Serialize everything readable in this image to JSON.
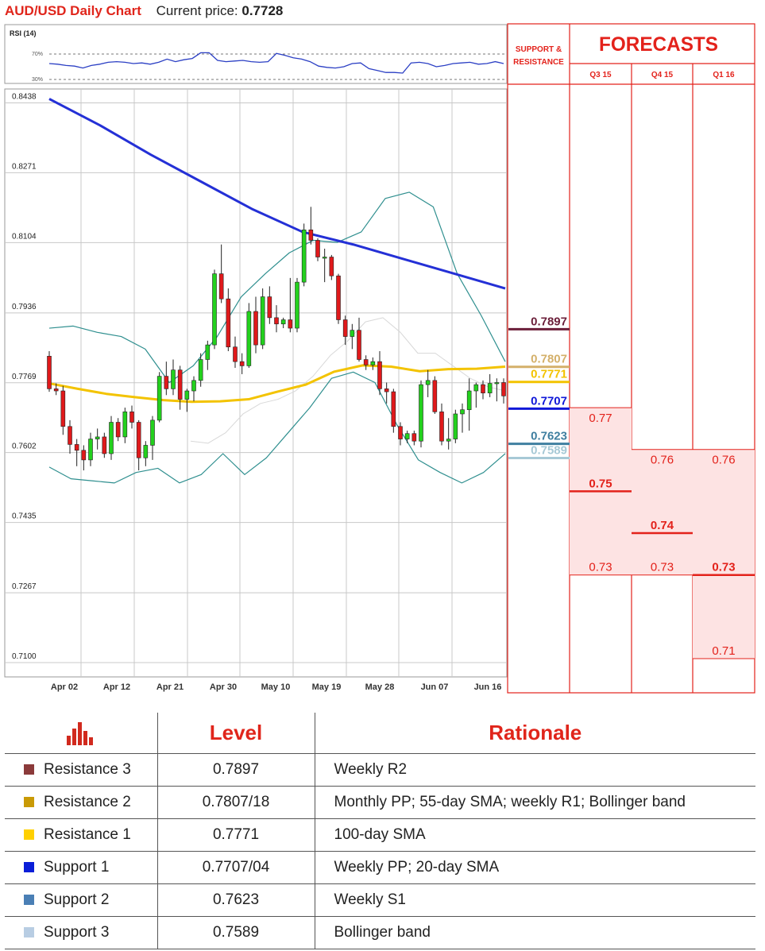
{
  "header": {
    "title": "AUD/USD Daily Chart",
    "price_label": "Current price:",
    "price_value": "0.7728"
  },
  "rsi": {
    "label": "RSI (14)",
    "upper": "70%",
    "lower": "30%",
    "values": [
      55,
      54,
      52,
      51,
      48,
      52,
      54,
      57,
      58,
      57,
      55,
      56,
      54,
      57,
      62,
      58,
      61,
      63,
      72,
      72,
      60,
      58,
      59,
      60,
      58,
      57,
      58,
      71,
      68,
      64,
      62,
      58,
      51,
      49,
      48,
      50,
      55,
      56,
      47,
      44,
      41,
      41,
      40,
      56,
      57,
      55,
      50,
      52,
      55,
      56,
      57,
      54,
      55,
      58,
      55
    ]
  },
  "chart_data": {
    "type": "candlestick",
    "title": "AUD/USD Daily Chart",
    "y_ticks": [
      "0.8438",
      "0.8271",
      "0.8104",
      "0.7936",
      "0.7769",
      "0.7602",
      "0.7435",
      "0.7267",
      "0.7100"
    ],
    "ylim": [
      0.71,
      0.8438
    ],
    "x_ticks": [
      "Apr 02",
      "Apr 12",
      "Apr 21",
      "Apr 30",
      "May 10",
      "May 19",
      "May 28",
      "Jun 07",
      "Jun 16"
    ],
    "candles": [
      [
        0.7823,
        0.7835,
        0.7738,
        0.7745
      ],
      [
        0.7745,
        0.7758,
        0.773,
        0.774
      ],
      [
        0.774,
        0.7752,
        0.7635,
        0.7655
      ],
      [
        0.7655,
        0.767,
        0.759,
        0.7612
      ],
      [
        0.7612,
        0.7625,
        0.756,
        0.7598
      ],
      [
        0.7598,
        0.761,
        0.755,
        0.7575
      ],
      [
        0.7575,
        0.764,
        0.756,
        0.7625
      ],
      [
        0.7625,
        0.765,
        0.76,
        0.763
      ],
      [
        0.763,
        0.764,
        0.758,
        0.759
      ],
      [
        0.759,
        0.768,
        0.7575,
        0.7665
      ],
      [
        0.7665,
        0.7675,
        0.762,
        0.763
      ],
      [
        0.763,
        0.77,
        0.7615,
        0.769
      ],
      [
        0.769,
        0.7705,
        0.765,
        0.7665
      ],
      [
        0.7665,
        0.767,
        0.755,
        0.758
      ],
      [
        0.758,
        0.762,
        0.756,
        0.761
      ],
      [
        0.761,
        0.768,
        0.7575,
        0.767
      ],
      [
        0.767,
        0.7785,
        0.7665,
        0.7775
      ],
      [
        0.7775,
        0.781,
        0.773,
        0.7745
      ],
      [
        0.7745,
        0.7815,
        0.773,
        0.779
      ],
      [
        0.779,
        0.78,
        0.7695,
        0.772
      ],
      [
        0.772,
        0.7745,
        0.769,
        0.774
      ],
      [
        0.774,
        0.7775,
        0.7715,
        0.7765
      ],
      [
        0.7765,
        0.783,
        0.775,
        0.7815
      ],
      [
        0.7815,
        0.786,
        0.779,
        0.785
      ],
      [
        0.785,
        0.803,
        0.784,
        0.802
      ],
      [
        0.802,
        0.809,
        0.795,
        0.796
      ],
      [
        0.796,
        0.7985,
        0.7835,
        0.7845
      ],
      [
        0.7845,
        0.787,
        0.7795,
        0.781
      ],
      [
        0.781,
        0.783,
        0.778,
        0.78
      ],
      [
        0.78,
        0.795,
        0.7795,
        0.793
      ],
      [
        0.793,
        0.7965,
        0.783,
        0.785
      ],
      [
        0.785,
        0.7985,
        0.784,
        0.7965
      ],
      [
        0.7965,
        0.799,
        0.79,
        0.7915
      ],
      [
        0.7915,
        0.7945,
        0.788,
        0.79
      ],
      [
        0.79,
        0.7915,
        0.789,
        0.791
      ],
      [
        0.791,
        0.801,
        0.788,
        0.789
      ],
      [
        0.789,
        0.801,
        0.788,
        0.8
      ],
      [
        0.8,
        0.814,
        0.799,
        0.8125
      ],
      [
        0.8125,
        0.818,
        0.809,
        0.81
      ],
      [
        0.81,
        0.8105,
        0.805,
        0.806
      ],
      [
        0.806,
        0.808,
        0.8,
        0.806
      ],
      [
        0.806,
        0.8065,
        0.8005,
        0.8015
      ],
      [
        0.8015,
        0.802,
        0.79,
        0.791
      ],
      [
        0.791,
        0.792,
        0.785,
        0.787
      ],
      [
        0.787,
        0.79,
        0.784,
        0.7885
      ],
      [
        0.7885,
        0.7915,
        0.781,
        0.7815
      ],
      [
        0.7815,
        0.7825,
        0.779,
        0.7802
      ],
      [
        0.7802,
        0.782,
        0.779,
        0.781
      ],
      [
        0.781,
        0.7835,
        0.773,
        0.7745
      ],
      [
        0.7745,
        0.776,
        0.771,
        0.7738
      ],
      [
        0.7738,
        0.7745,
        0.764,
        0.7655
      ],
      [
        0.7655,
        0.7665,
        0.761,
        0.7625
      ],
      [
        0.7625,
        0.7645,
        0.7615,
        0.7638
      ],
      [
        0.7638,
        0.7645,
        0.761,
        0.762
      ],
      [
        0.762,
        0.7765,
        0.7605,
        0.7755
      ],
      [
        0.7755,
        0.779,
        0.7725,
        0.7765
      ],
      [
        0.7765,
        0.7775,
        0.7685,
        0.769
      ],
      [
        0.769,
        0.771,
        0.761,
        0.762
      ],
      [
        0.762,
        0.7675,
        0.76,
        0.7625
      ],
      [
        0.7625,
        0.7695,
        0.7615,
        0.7685
      ],
      [
        0.7685,
        0.771,
        0.764,
        0.7695
      ],
      [
        0.7695,
        0.777,
        0.7645,
        0.774
      ],
      [
        0.774,
        0.776,
        0.77,
        0.7755
      ],
      [
        0.7755,
        0.7765,
        0.772,
        0.7735
      ],
      [
        0.7735,
        0.778,
        0.7725,
        0.7758
      ],
      [
        0.7758,
        0.777,
        0.7715,
        0.776
      ],
      [
        0.776,
        0.777,
        0.771,
        0.7728
      ]
    ],
    "series": [
      {
        "values": [
          0.8438,
          0.8375,
          0.8305,
          0.824,
          0.8175,
          0.812,
          0.809,
          0.8055,
          0.802,
          0.7985
        ]
      },
      {
        "values": [
          0.7758,
          0.7745,
          0.7733,
          0.7725,
          0.7718,
          0.7714,
          0.7715,
          0.772,
          0.7738,
          0.7755,
          0.7786,
          0.7801,
          0.7798,
          0.7787,
          0.7792,
          0.7793,
          0.7798
        ]
      },
      {
        "values": [
          0.789,
          0.7895,
          0.788,
          0.787,
          0.784,
          0.776,
          0.78,
          0.787,
          0.7965,
          0.802,
          0.807,
          0.81,
          0.8095,
          0.812,
          0.82,
          0.8215,
          0.818,
          0.802,
          0.792,
          0.781
        ]
      },
      {
        "values": [
          0.7558,
          0.753,
          0.7525,
          0.752,
          0.7545,
          0.7555,
          0.752,
          0.754,
          0.759,
          0.754,
          0.758,
          0.764,
          0.77,
          0.777,
          0.7785,
          0.776,
          0.766,
          0.7575,
          0.7545,
          0.752,
          0.7545,
          0.759
        ]
      },
      {
        "values": [
          0.762,
          0.7615,
          0.764,
          0.7685,
          0.771,
          0.772,
          0.774,
          0.7775,
          0.7825,
          0.786,
          0.7905,
          0.7915,
          0.788,
          0.783,
          0.783,
          0.78,
          0.777,
          0.775,
          0.774
        ]
      }
    ]
  },
  "levels": [
    {
      "value": "0.7897",
      "color": "#6b1f3a"
    },
    {
      "value": "0.7807",
      "color": "#d4b06a"
    },
    {
      "value": "0.7771",
      "color": "#f3c300"
    },
    {
      "value": "0.7707",
      "color": "#1018d8"
    },
    {
      "value": "0.7623",
      "color": "#3f7fa0"
    },
    {
      "value": "0.7589",
      "color": "#a7c9d6"
    }
  ],
  "forecast": {
    "sr_header": [
      "SUPPORT &",
      "RESISTANCE"
    ],
    "title": "FORECASTS",
    "quarters": [
      "Q3 15",
      "Q4 15",
      "Q1 16"
    ],
    "cols": [
      {
        "top": "0.77",
        "mid": "0.75",
        "bot": "0.73"
      },
      {
        "top": "0.76",
        "mid": "0.74",
        "bot": "0.73"
      },
      {
        "top": "0.76",
        "mid": "0.73",
        "bot": "0.71"
      }
    ]
  },
  "table": {
    "headers": [
      "Level",
      "Rationale"
    ],
    "rows": [
      {
        "name": "Resistance 3",
        "level": "0.7897",
        "rationale": "Weekly R2",
        "color": "#8b3a3a"
      },
      {
        "name": "Resistance 2",
        "level": "0.7807/18",
        "rationale": "Monthly PP; 55-day SMA; weekly R1; Bollinger band",
        "color": "#c99a06"
      },
      {
        "name": "Resistance 1",
        "level": "0.7771",
        "rationale": "100-day SMA",
        "color": "#ffd000"
      },
      {
        "name": "Support 1",
        "level": "0.7707/04",
        "rationale": "Weekly PP; 20-day SMA",
        "color": "#0a1ed8"
      },
      {
        "name": "Support 2",
        "level": "0.7623",
        "rationale": "Weekly S1",
        "color": "#4a7fb5"
      },
      {
        "name": "Support 3",
        "level": "0.7589",
        "rationale": "Bollinger band",
        "color": "#b8cde3"
      }
    ]
  }
}
